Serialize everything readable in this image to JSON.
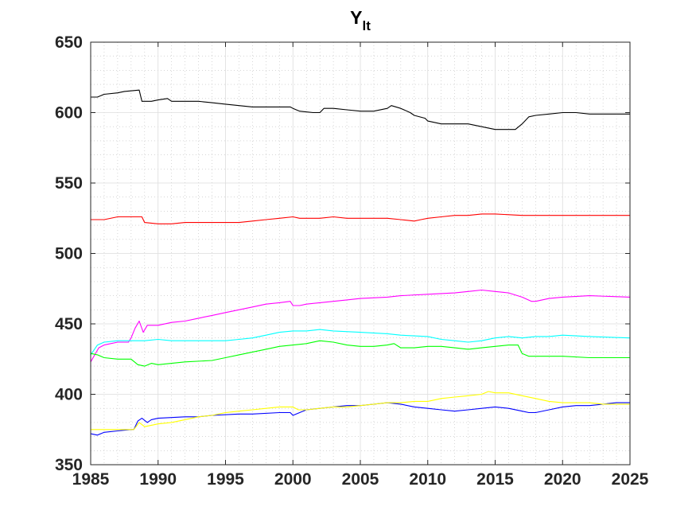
{
  "chart_data": {
    "type": "line",
    "title": "Y",
    "title_subscript": "lt",
    "xlabel": "",
    "ylabel": "",
    "xlim": [
      1985,
      2025
    ],
    "ylim": [
      350,
      650
    ],
    "xticks": [
      1985,
      1990,
      1995,
      2000,
      2005,
      2010,
      2015,
      2020,
      2025
    ],
    "yticks": [
      350,
      400,
      450,
      500,
      550,
      600,
      650
    ],
    "grid": true,
    "minor_grid": true,
    "series": [
      {
        "color": "#000000",
        "points": [
          [
            1985,
            611
          ],
          [
            1985.5,
            611
          ],
          [
            1986,
            613
          ],
          [
            1987,
            614
          ],
          [
            1987.5,
            615
          ],
          [
            1988.6,
            616
          ],
          [
            1988.8,
            608
          ],
          [
            1989.5,
            608
          ],
          [
            1990,
            609
          ],
          [
            1990.7,
            610
          ],
          [
            1991,
            608
          ],
          [
            1993,
            608
          ],
          [
            1994,
            607
          ],
          [
            1995,
            606
          ],
          [
            1996,
            605
          ],
          [
            1997,
            604
          ],
          [
            1999.8,
            604
          ],
          [
            2000,
            603
          ],
          [
            2000.5,
            601
          ],
          [
            2001.5,
            600
          ],
          [
            2002,
            600
          ],
          [
            2002.3,
            603
          ],
          [
            2003,
            603
          ],
          [
            2004,
            602
          ],
          [
            2005,
            601
          ],
          [
            2006,
            601
          ],
          [
            2007,
            603
          ],
          [
            2007.3,
            605
          ],
          [
            2008,
            603
          ],
          [
            2008.7,
            600
          ],
          [
            2009,
            598
          ],
          [
            2009.8,
            596
          ],
          [
            2010,
            594
          ],
          [
            2011,
            592
          ],
          [
            2012,
            592
          ],
          [
            2013,
            592
          ],
          [
            2014,
            590
          ],
          [
            2015,
            588
          ],
          [
            2016,
            588
          ],
          [
            2016.5,
            588
          ],
          [
            2017,
            592
          ],
          [
            2017.5,
            597
          ],
          [
            2018,
            598
          ],
          [
            2019,
            599
          ],
          [
            2020,
            600
          ],
          [
            2021,
            600
          ],
          [
            2022,
            599
          ],
          [
            2025,
            599
          ]
        ]
      },
      {
        "color": "#ff0000",
        "points": [
          [
            1985,
            524
          ],
          [
            1986,
            524
          ],
          [
            1987,
            526
          ],
          [
            1988,
            526
          ],
          [
            1988.8,
            526
          ],
          [
            1989,
            522
          ],
          [
            1990,
            521
          ],
          [
            1991,
            521
          ],
          [
            1992,
            522
          ],
          [
            1994,
            522
          ],
          [
            1996,
            522
          ],
          [
            1997,
            523
          ],
          [
            1998,
            524
          ],
          [
            1999,
            525
          ],
          [
            2000,
            526
          ],
          [
            2000.5,
            525
          ],
          [
            2001,
            525
          ],
          [
            2002,
            525
          ],
          [
            2003,
            526
          ],
          [
            2004,
            525
          ],
          [
            2005,
            525
          ],
          [
            2006,
            525
          ],
          [
            2007,
            525
          ],
          [
            2008,
            524
          ],
          [
            2009,
            523
          ],
          [
            2009.5,
            524
          ],
          [
            2010,
            525
          ],
          [
            2011,
            526
          ],
          [
            2012,
            527
          ],
          [
            2013,
            527
          ],
          [
            2014,
            528
          ],
          [
            2015,
            528
          ],
          [
            2017,
            527
          ],
          [
            2019,
            527
          ],
          [
            2020,
            527
          ],
          [
            2022,
            527
          ],
          [
            2025,
            527
          ]
        ]
      },
      {
        "color": "#ff00ff",
        "points": [
          [
            1985,
            423
          ],
          [
            1985.3,
            428
          ],
          [
            1985.6,
            433
          ],
          [
            1986,
            435
          ],
          [
            1987,
            437
          ],
          [
            1987.8,
            437
          ],
          [
            1988,
            440
          ],
          [
            1988.3,
            447
          ],
          [
            1988.6,
            452
          ],
          [
            1988.9,
            444
          ],
          [
            1989.2,
            449
          ],
          [
            1990,
            449
          ],
          [
            1991,
            451
          ],
          [
            1992,
            452
          ],
          [
            1993,
            454
          ],
          [
            1994,
            456
          ],
          [
            1995,
            458
          ],
          [
            1996,
            460
          ],
          [
            1997,
            462
          ],
          [
            1998,
            464
          ],
          [
            1999,
            465
          ],
          [
            1999.8,
            466
          ],
          [
            2000,
            463
          ],
          [
            2000.5,
            463
          ],
          [
            2001,
            464
          ],
          [
            2002,
            465
          ],
          [
            2003,
            466
          ],
          [
            2004,
            467
          ],
          [
            2005,
            468
          ],
          [
            2007,
            469
          ],
          [
            2008,
            470
          ],
          [
            2010,
            471
          ],
          [
            2012,
            472
          ],
          [
            2013,
            473
          ],
          [
            2014,
            474
          ],
          [
            2015,
            473
          ],
          [
            2016,
            472
          ],
          [
            2017,
            469
          ],
          [
            2017.7,
            466
          ],
          [
            2018,
            466
          ],
          [
            2019,
            468
          ],
          [
            2020,
            469
          ],
          [
            2022,
            470
          ],
          [
            2025,
            469
          ]
        ]
      },
      {
        "color": "#00ffff",
        "points": [
          [
            1985,
            428
          ],
          [
            1985.5,
            435
          ],
          [
            1986,
            437
          ],
          [
            1987,
            438
          ],
          [
            1988,
            438
          ],
          [
            1989,
            438
          ],
          [
            1990,
            439
          ],
          [
            1991,
            438
          ],
          [
            1992,
            438
          ],
          [
            1995,
            438
          ],
          [
            1996,
            439
          ],
          [
            1997,
            440
          ],
          [
            1998,
            442
          ],
          [
            1999,
            444
          ],
          [
            2000,
            445
          ],
          [
            2001,
            445
          ],
          [
            2002,
            446
          ],
          [
            2003,
            445
          ],
          [
            2005,
            444
          ],
          [
            2007,
            443
          ],
          [
            2008,
            442
          ],
          [
            2010,
            441
          ],
          [
            2011,
            439
          ],
          [
            2012,
            438
          ],
          [
            2013,
            437
          ],
          [
            2014,
            438
          ],
          [
            2015,
            440
          ],
          [
            2016,
            441
          ],
          [
            2017,
            440
          ],
          [
            2018,
            441
          ],
          [
            2019,
            441
          ],
          [
            2020,
            442
          ],
          [
            2022,
            441
          ],
          [
            2025,
            440
          ]
        ]
      },
      {
        "color": "#00ff00",
        "points": [
          [
            1985,
            429
          ],
          [
            1985.5,
            428
          ],
          [
            1986,
            426
          ],
          [
            1987,
            425
          ],
          [
            1988,
            425
          ],
          [
            1988.5,
            421
          ],
          [
            1989,
            420
          ],
          [
            1989.5,
            422
          ],
          [
            1990,
            421
          ],
          [
            1991,
            422
          ],
          [
            1992,
            423
          ],
          [
            1994,
            424
          ],
          [
            1995,
            426
          ],
          [
            1996,
            428
          ],
          [
            1997,
            430
          ],
          [
            1998,
            432
          ],
          [
            1999,
            434
          ],
          [
            2000,
            435
          ],
          [
            2001,
            436
          ],
          [
            2002,
            438
          ],
          [
            2003,
            437
          ],
          [
            2004,
            435
          ],
          [
            2005,
            434
          ],
          [
            2006,
            434
          ],
          [
            2007,
            435
          ],
          [
            2007.5,
            436
          ],
          [
            2008,
            433
          ],
          [
            2009,
            433
          ],
          [
            2010,
            434
          ],
          [
            2011,
            434
          ],
          [
            2012,
            433
          ],
          [
            2013,
            432
          ],
          [
            2014,
            433
          ],
          [
            2015,
            434
          ],
          [
            2016,
            435
          ],
          [
            2016.7,
            435
          ],
          [
            2017,
            429
          ],
          [
            2017.5,
            427
          ],
          [
            2018,
            427
          ],
          [
            2019,
            427
          ],
          [
            2020,
            427
          ],
          [
            2022,
            426
          ],
          [
            2025,
            426
          ]
        ]
      },
      {
        "color": "#0000ff",
        "points": [
          [
            1985,
            372
          ],
          [
            1985.5,
            371
          ],
          [
            1986,
            373
          ],
          [
            1987,
            374
          ],
          [
            1988,
            375
          ],
          [
            1988.2,
            375
          ],
          [
            1988.5,
            381
          ],
          [
            1988.8,
            383
          ],
          [
            1989.2,
            380
          ],
          [
            1989.5,
            382
          ],
          [
            1990,
            383
          ],
          [
            1992,
            384
          ],
          [
            1993,
            384
          ],
          [
            1994,
            385
          ],
          [
            1996,
            386
          ],
          [
            1997,
            386
          ],
          [
            1999,
            387
          ],
          [
            1999.8,
            387
          ],
          [
            2000,
            385
          ],
          [
            2000.5,
            387
          ],
          [
            2001,
            389
          ],
          [
            2002,
            390
          ],
          [
            2003,
            391
          ],
          [
            2004,
            392
          ],
          [
            2005,
            392
          ],
          [
            2006,
            393
          ],
          [
            2007,
            394
          ],
          [
            2008,
            393
          ],
          [
            2009,
            391
          ],
          [
            2010,
            390
          ],
          [
            2011,
            389
          ],
          [
            2012,
            388
          ],
          [
            2013,
            389
          ],
          [
            2014,
            390
          ],
          [
            2015,
            391
          ],
          [
            2016,
            390
          ],
          [
            2017,
            388
          ],
          [
            2017.5,
            387
          ],
          [
            2018,
            387
          ],
          [
            2019,
            389
          ],
          [
            2020,
            391
          ],
          [
            2021,
            392
          ],
          [
            2022,
            392
          ],
          [
            2023,
            393
          ],
          [
            2024,
            394
          ],
          [
            2025,
            394
          ]
        ]
      },
      {
        "color": "#ffff00",
        "points": [
          [
            1985,
            375
          ],
          [
            1986,
            375
          ],
          [
            1987,
            375
          ],
          [
            1988,
            375
          ],
          [
            1988.2,
            375
          ],
          [
            1988.6,
            380
          ],
          [
            1989,
            377
          ],
          [
            1989.5,
            378
          ],
          [
            1990,
            379
          ],
          [
            1991,
            380
          ],
          [
            1992,
            382
          ],
          [
            1993,
            384
          ],
          [
            1994,
            385
          ],
          [
            1995,
            387
          ],
          [
            1996,
            388
          ],
          [
            1997,
            389
          ],
          [
            1998,
            390
          ],
          [
            1999,
            391
          ],
          [
            2000,
            391
          ],
          [
            2000.4,
            389
          ],
          [
            2001,
            389
          ],
          [
            2002,
            390
          ],
          [
            2003,
            391
          ],
          [
            2004,
            391
          ],
          [
            2005,
            392
          ],
          [
            2006,
            393
          ],
          [
            2007,
            394
          ],
          [
            2008,
            394
          ],
          [
            2009,
            395
          ],
          [
            2010,
            395
          ],
          [
            2011,
            397
          ],
          [
            2012,
            398
          ],
          [
            2013,
            399
          ],
          [
            2014,
            400
          ],
          [
            2014.5,
            402
          ],
          [
            2015,
            401
          ],
          [
            2016,
            401
          ],
          [
            2017,
            399
          ],
          [
            2018,
            397
          ],
          [
            2019,
            395
          ],
          [
            2020,
            394
          ],
          [
            2021,
            394
          ],
          [
            2022,
            394
          ],
          [
            2023,
            393
          ],
          [
            2024,
            393
          ],
          [
            2025,
            393
          ]
        ]
      }
    ]
  }
}
